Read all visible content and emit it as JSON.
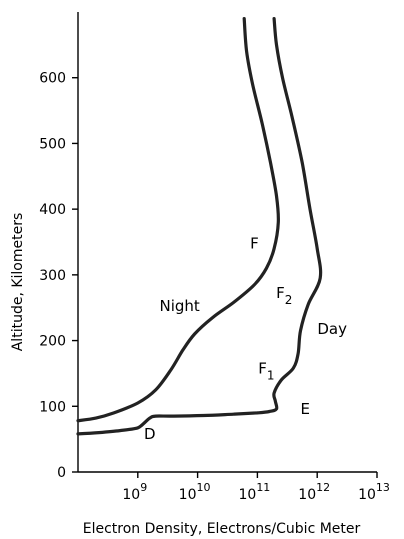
{
  "chart_data": {
    "type": "line",
    "title": "",
    "xlabel": "Electron Density, Electrons/Cubic Meter",
    "ylabel": "Altitude, Kilometers",
    "x_scale": "log",
    "xlim_log10": [
      8,
      13
    ],
    "ylim": [
      0,
      700
    ],
    "x_ticks": [
      {
        "base": "10",
        "exp": "9",
        "log": 9
      },
      {
        "base": "10",
        "exp": "10",
        "log": 10
      },
      {
        "base": "10",
        "exp": "11",
        "log": 11
      },
      {
        "base": "10",
        "exp": "12",
        "log": 12
      },
      {
        "base": "10",
        "exp": "13",
        "log": 13
      }
    ],
    "y_ticks": [
      0,
      100,
      200,
      300,
      400,
      500,
      600
    ],
    "grid": false,
    "series": [
      {
        "name": "Night",
        "points": [
          {
            "log10_density": 8.0,
            "altitude": 78
          },
          {
            "log10_density": 8.3,
            "altitude": 82
          },
          {
            "log10_density": 8.6,
            "altitude": 90
          },
          {
            "log10_density": 9.0,
            "altitude": 105
          },
          {
            "log10_density": 9.3,
            "altitude": 125
          },
          {
            "log10_density": 9.55,
            "altitude": 155
          },
          {
            "log10_density": 9.75,
            "altitude": 185
          },
          {
            "log10_density": 9.95,
            "altitude": 210
          },
          {
            "log10_density": 10.25,
            "altitude": 235
          },
          {
            "log10_density": 10.6,
            "altitude": 258
          },
          {
            "log10_density": 10.95,
            "altitude": 285
          },
          {
            "log10_density": 11.15,
            "altitude": 310
          },
          {
            "log10_density": 11.28,
            "altitude": 340
          },
          {
            "log10_density": 11.35,
            "altitude": 380
          },
          {
            "log10_density": 11.32,
            "altitude": 420
          },
          {
            "log10_density": 11.22,
            "altitude": 470
          },
          {
            "log10_density": 11.08,
            "altitude": 530
          },
          {
            "log10_density": 10.92,
            "altitude": 590
          },
          {
            "log10_density": 10.82,
            "altitude": 640
          },
          {
            "log10_density": 10.78,
            "altitude": 690
          }
        ]
      },
      {
        "name": "Day",
        "points": [
          {
            "log10_density": 8.0,
            "altitude": 58
          },
          {
            "log10_density": 8.35,
            "altitude": 60
          },
          {
            "log10_density": 8.7,
            "altitude": 63
          },
          {
            "log10_density": 8.95,
            "altitude": 66
          },
          {
            "log10_density": 9.05,
            "altitude": 70
          },
          {
            "log10_density": 9.2,
            "altitude": 82
          },
          {
            "log10_density": 9.3,
            "altitude": 85
          },
          {
            "log10_density": 9.6,
            "altitude": 85
          },
          {
            "log10_density": 10.1,
            "altitude": 86
          },
          {
            "log10_density": 10.6,
            "altitude": 88
          },
          {
            "log10_density": 11.0,
            "altitude": 90
          },
          {
            "log10_density": 11.2,
            "altitude": 92
          },
          {
            "log10_density": 11.32,
            "altitude": 96
          },
          {
            "log10_density": 11.3,
            "altitude": 108
          },
          {
            "log10_density": 11.28,
            "altitude": 120
          },
          {
            "log10_density": 11.4,
            "altitude": 140
          },
          {
            "log10_density": 11.6,
            "altitude": 158
          },
          {
            "log10_density": 11.68,
            "altitude": 180
          },
          {
            "log10_density": 11.72,
            "altitude": 215
          },
          {
            "log10_density": 11.85,
            "altitude": 255
          },
          {
            "log10_density": 12.05,
            "altitude": 295
          },
          {
            "log10_density": 12.0,
            "altitude": 340
          },
          {
            "log10_density": 11.88,
            "altitude": 400
          },
          {
            "log10_density": 11.75,
            "altitude": 470
          },
          {
            "log10_density": 11.58,
            "altitude": 540
          },
          {
            "log10_density": 11.42,
            "altitude": 600
          },
          {
            "log10_density": 11.32,
            "altitude": 650
          },
          {
            "log10_density": 11.28,
            "altitude": 690
          }
        ]
      }
    ],
    "annotations": [
      {
        "id": "night",
        "text": "Night",
        "log10_density": 9.7,
        "altitude": 245
      },
      {
        "id": "day",
        "text": "Day",
        "log10_density": 12.25,
        "altitude": 210
      },
      {
        "id": "f",
        "text": "F",
        "log10_density": 10.95,
        "altitude": 340
      },
      {
        "id": "f2",
        "text": "F",
        "sub": "2",
        "log10_density": 11.45,
        "altitude": 265
      },
      {
        "id": "f1",
        "text": "F",
        "sub": "1",
        "log10_density": 11.15,
        "altitude": 150
      },
      {
        "id": "e",
        "text": "E",
        "log10_density": 11.8,
        "altitude": 88
      },
      {
        "id": "d",
        "text": "D",
        "log10_density": 9.2,
        "altitude": 50
      }
    ]
  }
}
